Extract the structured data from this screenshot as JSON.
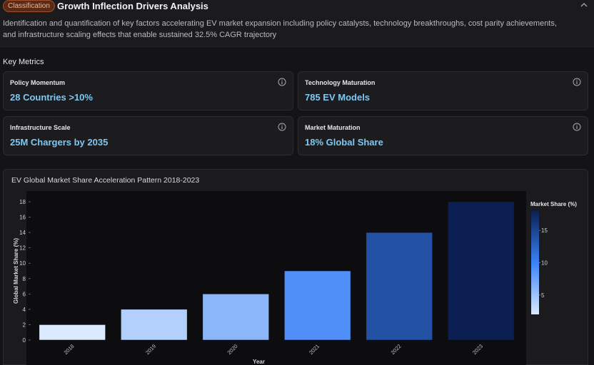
{
  "header": {
    "badge": "Classification",
    "title": "Growth Inflection Drivers Analysis",
    "description": "Identification and quantification of key factors accelerating EV market expansion including policy catalysts, technology breakthroughs, cost parity achievements, and infrastructure scaling effects that enable sustained 32.5% CAGR trajectory",
    "collapse_icon": "chevron-up-icon"
  },
  "key_metrics": {
    "label": "Key Metrics",
    "cards": [
      {
        "label": "Policy Momentum",
        "value": "28 Countries >10%",
        "icon": "info-icon"
      },
      {
        "label": "Technology Maturation",
        "value": "785 EV Models",
        "icon": "info-icon"
      },
      {
        "label": "Infrastructure Scale",
        "value": "25M Chargers by 2035",
        "icon": "info-icon"
      },
      {
        "label": "Market Maturation",
        "value": "18% Global Share",
        "icon": "info-icon"
      }
    ]
  },
  "colors": {
    "accent_value": "#7ec8f4",
    "badge_bg": "#5a2a17",
    "scale_low": "#dbeafe",
    "scale_high": "#0b1f52"
  },
  "chart_data": {
    "type": "bar",
    "title": "EV Global Market Share Acceleration Pattern 2018-2023",
    "xlabel": "Year",
    "ylabel": "Global Market Share (%)",
    "categories": [
      "2018",
      "2019",
      "2020",
      "2021",
      "2022",
      "2023"
    ],
    "values": [
      2,
      4,
      6,
      9,
      14,
      18
    ],
    "ylim": [
      0,
      18
    ],
    "yticks": [
      "0",
      "2",
      "4",
      "6",
      "8",
      "10",
      "12",
      "14",
      "16",
      "18"
    ],
    "colorbar": {
      "title": "Market Share (%)",
      "ticks": [
        "5",
        "10",
        "15"
      ],
      "range": [
        2,
        18
      ]
    },
    "grid": false
  }
}
